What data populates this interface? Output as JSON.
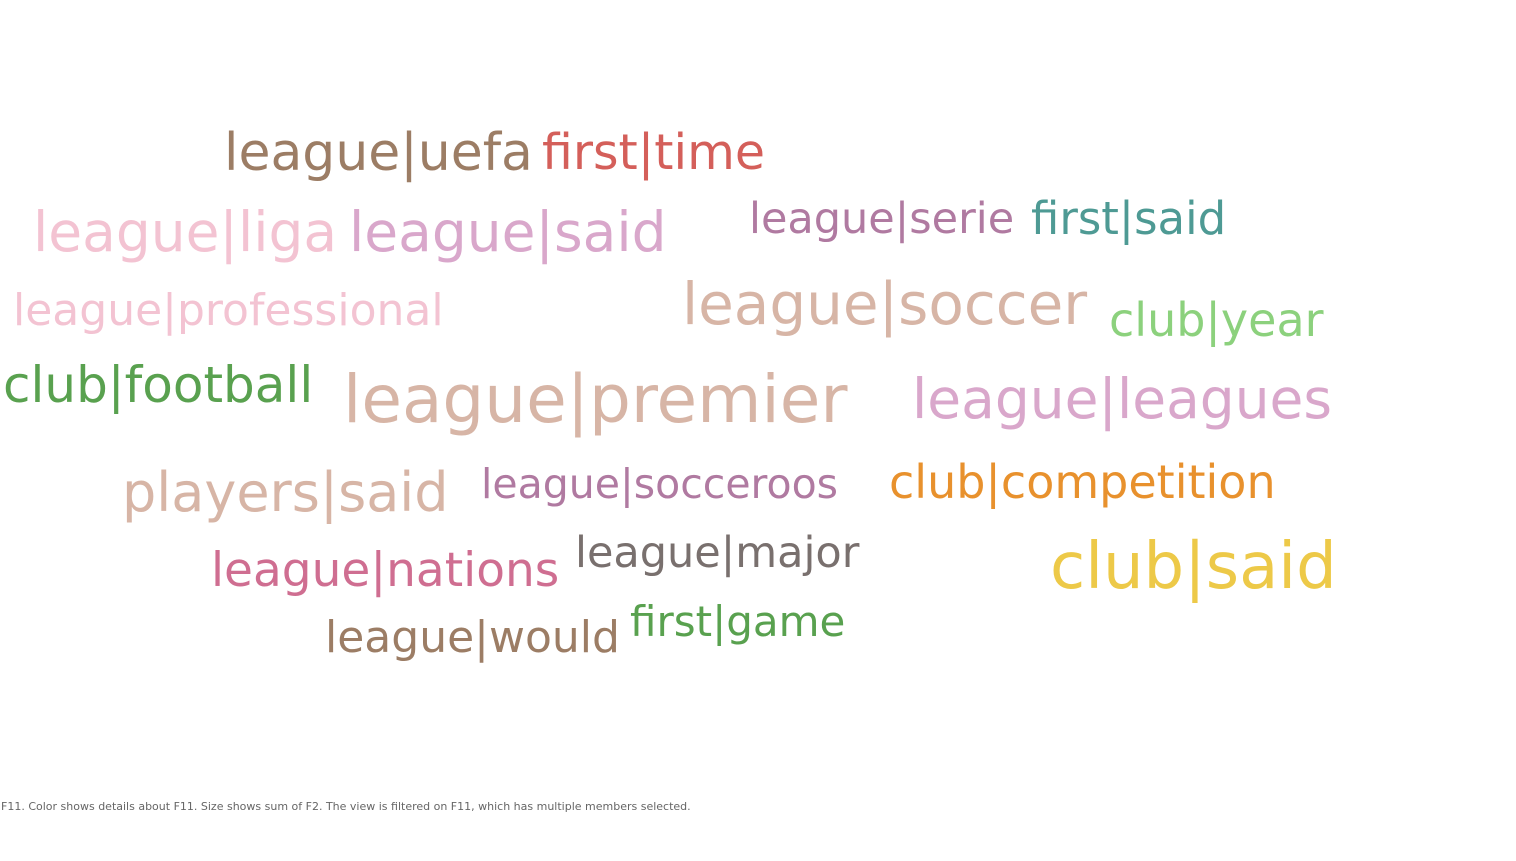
{
  "chart_data": {
    "type": "word_cloud",
    "words": [
      {
        "text": "league|uefa",
        "color": "#9c7d65"
      },
      {
        "text": "first|time",
        "color": "#d45f5a"
      },
      {
        "text": "league|liga",
        "color": "#f3c3d2"
      },
      {
        "text": "league|said",
        "color": "#d9a7cb"
      },
      {
        "text": "league|serie",
        "color": "#b07aa1"
      },
      {
        "text": "first|said",
        "color": "#4e9a94"
      },
      {
        "text": "league|professional",
        "color": "#f3c3d2"
      },
      {
        "text": "league|soccer",
        "color": "#d7b5a6"
      },
      {
        "text": "club|year",
        "color": "#8cd17d"
      },
      {
        "text": "club|football",
        "color": "#59a14f"
      },
      {
        "text": "league|premier",
        "color": "#d7b5a6"
      },
      {
        "text": "league|leagues",
        "color": "#d9a7cb"
      },
      {
        "text": "players|said",
        "color": "#d7b5a6"
      },
      {
        "text": "league|socceroos",
        "color": "#b07aa1"
      },
      {
        "text": "club|competition",
        "color": "#e8912d"
      },
      {
        "text": "league|nations",
        "color": "#cf6e91"
      },
      {
        "text": "league|major",
        "color": "#79706e"
      },
      {
        "text": "club|said",
        "color": "#edc948"
      },
      {
        "text": "first|game",
        "color": "#59a14f"
      },
      {
        "text": "league|would",
        "color": "#9c7d65"
      }
    ]
  },
  "caption": "F11.  Color shows details about F11.  Size shows sum of F2. The view is filtered on F11, which has multiple members selected."
}
